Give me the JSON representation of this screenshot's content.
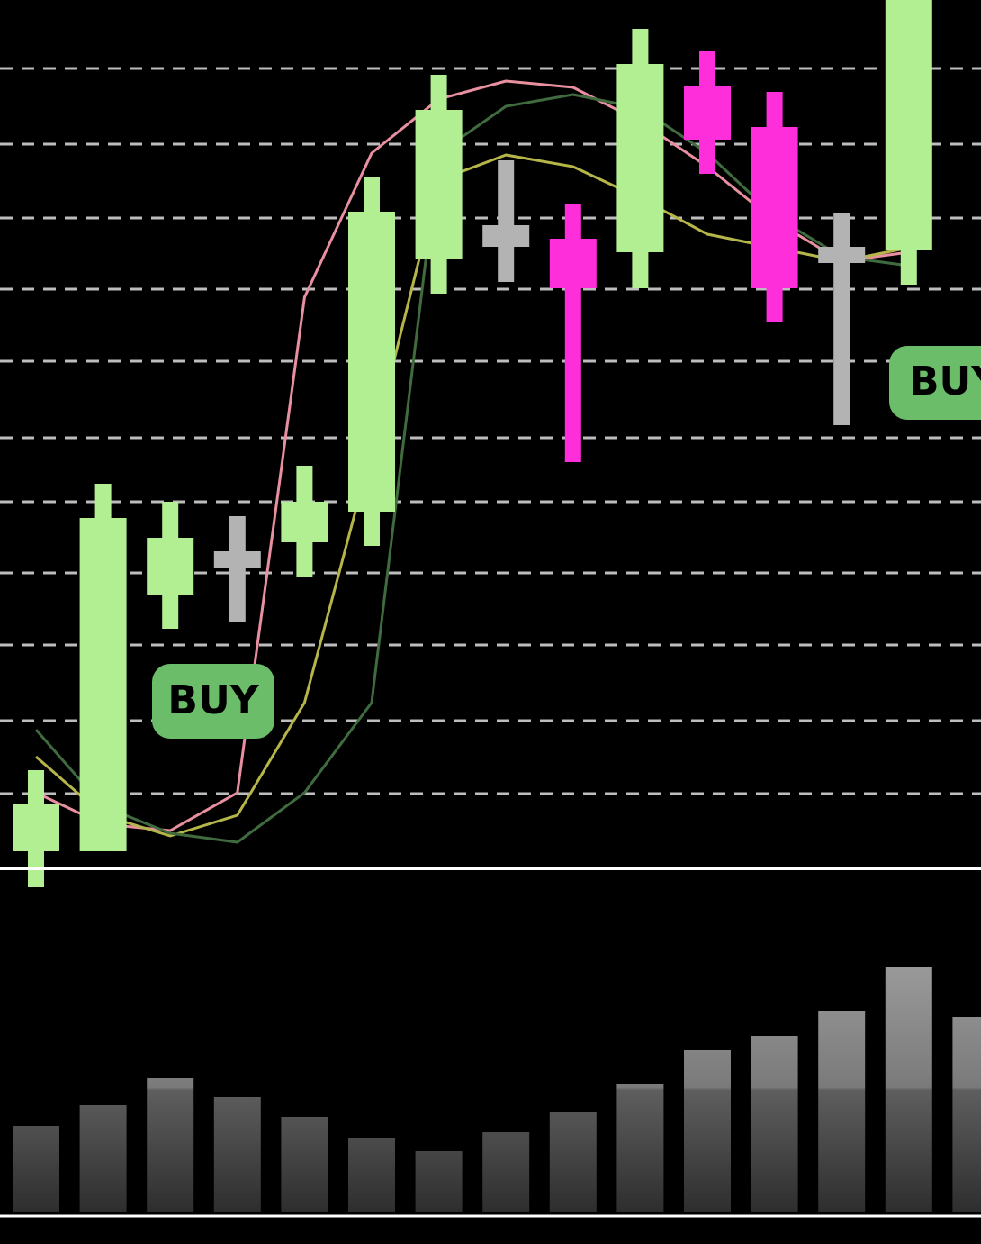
{
  "chart_data": [
    {
      "type": "candlestick",
      "categories": [
        null,
        null,
        null,
        null,
        null,
        null,
        null,
        null,
        null,
        null,
        null,
        null,
        null,
        null,
        null
      ],
      "open": [
        18,
        18,
        303,
        333,
        361,
        395,
        675,
        689,
        698,
        683,
        867,
        822,
        671,
        686,
        null
      ],
      "high": [
        108,
        426,
        406,
        390,
        446,
        767,
        880,
        785,
        737,
        931,
        906,
        861,
        727,
        963,
        null
      ],
      "low": [
        -22,
        18,
        265,
        272,
        323,
        357,
        637,
        650,
        450,
        643,
        770,
        605,
        491,
        647,
        null
      ],
      "close": [
        70,
        388,
        366,
        351,
        406,
        728,
        841,
        713,
        643,
        892,
        808,
        643,
        689,
        963,
        null
      ],
      "colors": [
        "#b2ee92",
        "#b2ee92",
        "#b2ee92",
        "#b3b3b3",
        "#b2ee92",
        "#b2ee92",
        "#b2ee92",
        "#b3b3b3",
        "#ff2edb",
        "#b2ee92",
        "#ff2edb",
        "#ff2edb",
        "#b3b3b3",
        "#b2ee92",
        null
      ],
      "ylim": [
        0,
        963
      ],
      "yticks": [
        82,
        163,
        247,
        327,
        406,
        477,
        562,
        642,
        721,
        803,
        887
      ],
      "grid": true,
      "lines": [
        {
          "color": "#e88fa0",
          "values": [
            83,
            48,
            41,
            83,
            633,
            793,
            853,
            873,
            866,
            828,
            778,
            718,
            673,
            683,
            null
          ]
        },
        {
          "color": "#b5b54a",
          "values": [
            123,
            58,
            35,
            58,
            183,
            463,
            763,
            791,
            778,
            743,
            703,
            688,
            673,
            688,
            null
          ]
        },
        {
          "color": "#3f6b3f",
          "values": [
            153,
            68,
            38,
            28,
            83,
            183,
            793,
            845,
            858,
            843,
            793,
            723,
            678,
            668,
            null
          ]
        }
      ],
      "annotations": [
        "BUY",
        "BUY"
      ]
    },
    {
      "type": "bar",
      "categories": [
        null,
        null,
        null,
        null,
        null,
        null,
        null,
        null,
        null,
        null,
        null,
        null,
        null,
        null,
        null
      ],
      "values": [
        95,
        118,
        148,
        127,
        105,
        82,
        67,
        88,
        110,
        142,
        179,
        195,
        223,
        271,
        216
      ],
      "ylim": [
        0,
        382
      ],
      "color": "url(#volgrad)"
    }
  ]
}
